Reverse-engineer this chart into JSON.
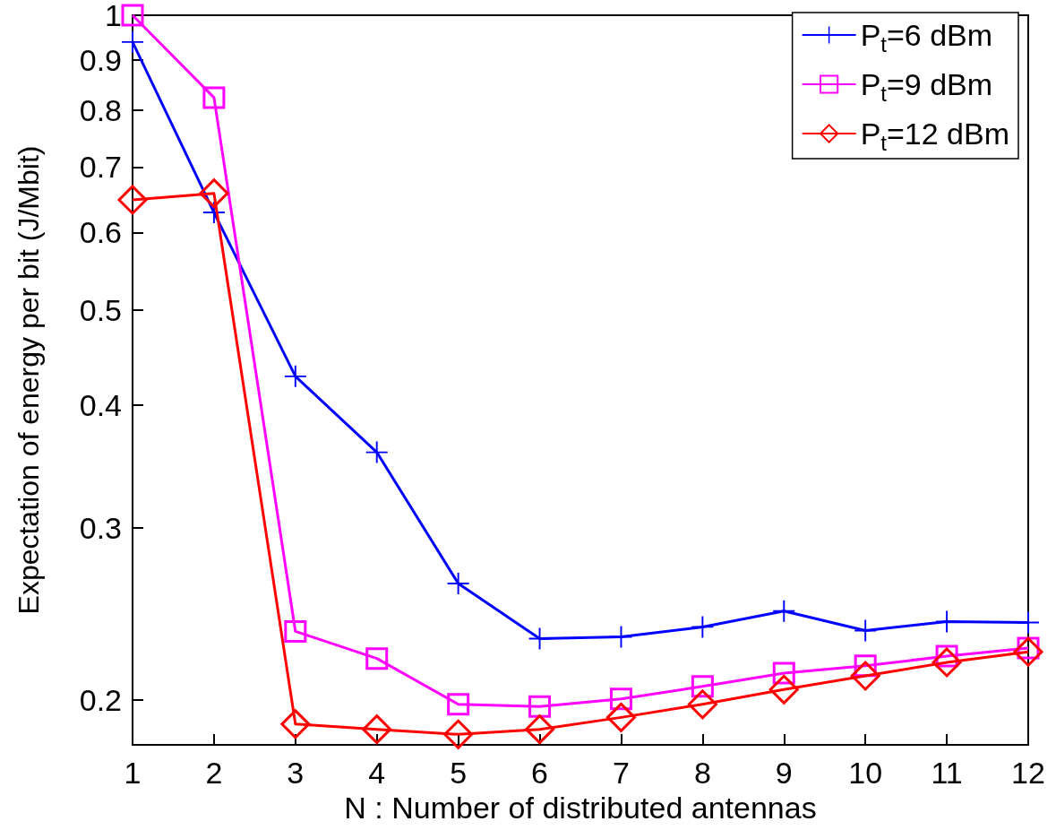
{
  "chart_data": {
    "type": "line",
    "xlabel": "N : Number of distributed antennas",
    "ylabel": "Expectation of energy per bit (J/Mbit)",
    "x": [
      1,
      2,
      3,
      4,
      5,
      6,
      7,
      8,
      9,
      10,
      11,
      12
    ],
    "series": [
      {
        "name": "P$_{t}$=6 dBm",
        "color": "#0000ff",
        "marker": "cross",
        "values": [
          0.939,
          0.629,
          0.428,
          0.358,
          0.263,
          0.231,
          0.232,
          0.2375,
          0.2465,
          0.2355,
          0.2405,
          0.24
        ]
      },
      {
        "name": "P$_{t}$=9 dBm",
        "color": "#ff00ff",
        "marker": "square",
        "values": [
          1.0,
          0.824,
          0.235,
          0.2205,
          0.198,
          0.197,
          0.2005,
          0.2065,
          0.213,
          0.2168,
          0.2217,
          0.226
        ]
      },
      {
        "name": "P$_{t}$=12 dBm",
        "color": "#ff0000",
        "marker": "diamond",
        "values": [
          0.648,
          0.658,
          0.189,
          0.1867,
          0.1845,
          0.1867,
          0.192,
          0.198,
          0.205,
          0.2117,
          0.2185,
          0.224
        ]
      }
    ],
    "xlim": [
      1,
      12
    ],
    "xticks": [
      1,
      2,
      3,
      4,
      5,
      6,
      7,
      8,
      9,
      10,
      11,
      12
    ],
    "ylim": [
      0.18,
      1
    ],
    "yticks": [
      0.2,
      0.3,
      0.4,
      0.5,
      0.6,
      0.7,
      0.8,
      0.9,
      1
    ],
    "log": "y",
    "grid": false,
    "legend": "top right",
    "line_style": "solid"
  }
}
